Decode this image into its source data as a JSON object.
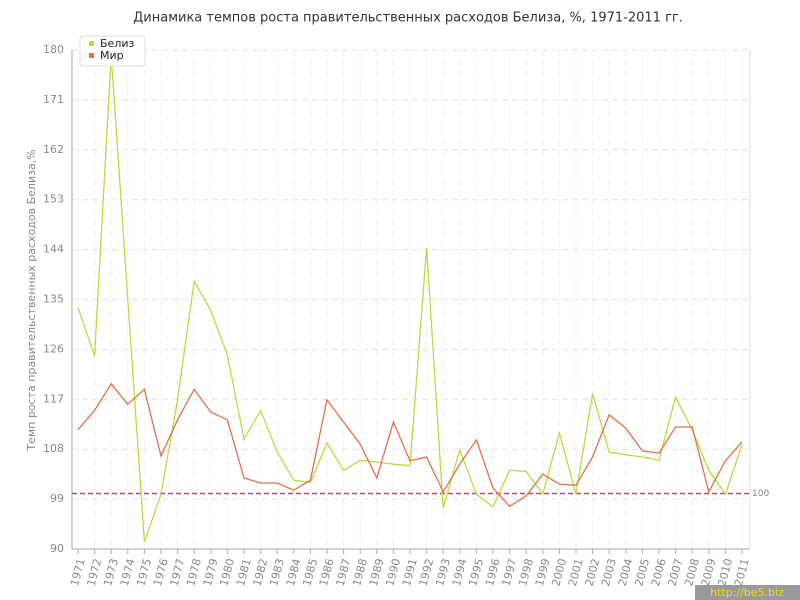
{
  "chart_data": {
    "type": "line",
    "title": "Динамика темпов роста правительственных расходов Белиза, %, 1971-2011 гг.",
    "y_label": "Темп роста правительственных расходов Белиза,%",
    "categories": [
      "1971",
      "1972",
      "1973",
      "1974",
      "1975",
      "1976",
      "1977",
      "1978",
      "1979",
      "1980",
      "1981",
      "1982",
      "1983",
      "1984",
      "1985",
      "1986",
      "1987",
      "1988",
      "1989",
      "1990",
      "1991",
      "1992",
      "1993",
      "1994",
      "1995",
      "1996",
      "1997",
      "1998",
      "1999",
      "2000",
      "2001",
      "2002",
      "2003",
      "2004",
      "2005",
      "2006",
      "2007",
      "2008",
      "2009",
      "2010",
      "2011"
    ],
    "series": [
      {
        "name": "Белиз",
        "color": "#bcd844",
        "values": [
          133.6,
          124.8,
          179,
          135,
          91.3,
          99.8,
          117,
          138.3,
          133,
          125,
          109.8,
          115,
          107.5,
          102.4,
          102,
          109.1,
          104.2,
          106,
          105.7,
          105.3,
          105,
          144.3,
          97.4,
          107.9,
          99.9,
          97.6,
          104.2,
          104,
          99.9,
          110.9,
          99.9,
          118,
          107.5,
          107,
          106.6,
          106,
          117.4,
          111.5,
          104.2,
          99.9,
          108.8
        ]
      },
      {
        "name": "Мир",
        "color": "#e0704a",
        "values": [
          111.5,
          115,
          119.8,
          116.1,
          118.8,
          106.8,
          113.3,
          118.8,
          114.7,
          113.3,
          102.8,
          101.9,
          101.9,
          100.6,
          102.4,
          116.9,
          112.9,
          108.9,
          102.8,
          112.9,
          105.9,
          106.6,
          100.3,
          105.3,
          109.7,
          101,
          97.7,
          99.6,
          103.5,
          101.7,
          101.5,
          106.6,
          114.2,
          111.8,
          107.7,
          107.3,
          112,
          112,
          100.3,
          105.9,
          109.3
        ]
      }
    ],
    "ylim": [
      90,
      180
    ],
    "yticks": [
      90,
      99,
      108,
      117,
      126,
      135,
      144,
      153,
      162,
      171,
      180
    ],
    "grid": true,
    "legend": "top-left",
    "reference_line": {
      "value": 100,
      "label": "100",
      "color": "#a8506a"
    },
    "watermark": "http://be5.biz"
  }
}
